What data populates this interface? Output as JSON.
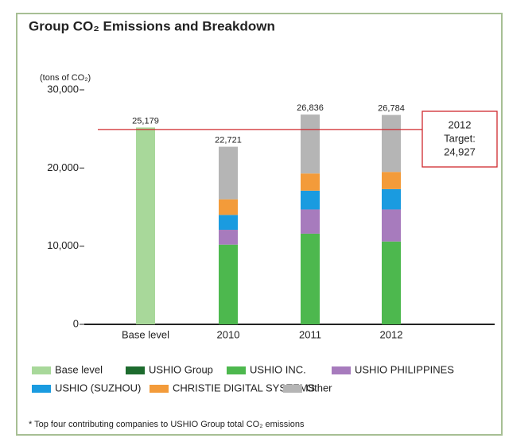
{
  "chart_data": {
    "type": "stacked_bar",
    "title": "Group CO₂ Emissions and Breakdown",
    "y_axis_label": "(tons of CO₂)",
    "categories": [
      "Base level",
      "2010",
      "2011",
      "2012"
    ],
    "series": [
      {
        "name": "Base level",
        "color": "#a8d89a",
        "values": [
          25179,
          null,
          null,
          null
        ]
      },
      {
        "name": "USHIO Group",
        "color": "#1d6b2e",
        "values": [
          null,
          null,
          null,
          null
        ]
      },
      {
        "name": "USHIO INC.",
        "color": "#4db84e",
        "values": [
          null,
          10200,
          11600,
          10600
        ]
      },
      {
        "name": "USHIO PHILIPPINES",
        "color": "#a77bbd",
        "values": [
          null,
          1900,
          3100,
          4100
        ]
      },
      {
        "name": "USHIO (SUZHOU)",
        "color": "#1a9be0",
        "values": [
          null,
          1900,
          2400,
          2600
        ]
      },
      {
        "name": "CHRISTIE DIGITAL SYSTEMS",
        "color": "#f39b3a",
        "values": [
          null,
          2000,
          2200,
          2200
        ]
      },
      {
        "name": "Other",
        "color": "#b5b5b5",
        "values": [
          null,
          6721,
          7536,
          7284
        ]
      }
    ],
    "totals": [
      25179,
      22721,
      26836,
      26784
    ],
    "total_labels": [
      "25,179",
      "22,721",
      "26,836",
      "26,784"
    ],
    "ylim": [
      0,
      30000
    ],
    "yticks": [
      0,
      {
        "value": 10000,
        "label": "10,000"
      },
      {
        "value": 20000,
        "label": "20,000"
      },
      {
        "value": 30000,
        "label": "30,000"
      }
    ],
    "target": {
      "value": 24927,
      "color": "#d0282e",
      "lines": [
        "2012",
        "Target:",
        "24,927"
      ]
    },
    "footnote": "* Top four contributing companies to USHIO Group total CO₂ emissions"
  }
}
